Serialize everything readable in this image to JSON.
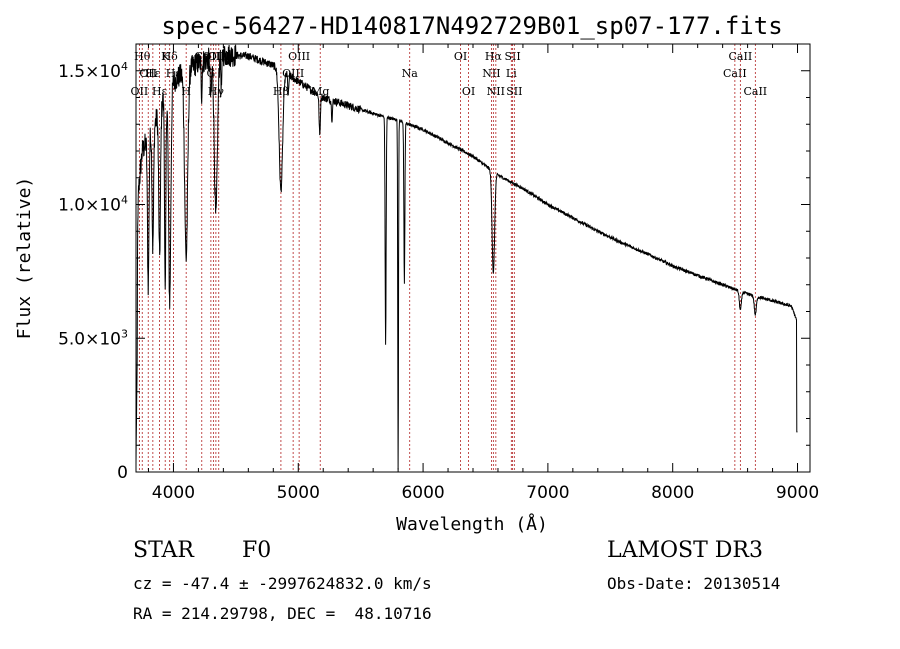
{
  "chart_data": {
    "type": "line",
    "title": "spec-56427-HD140817N492729B01_sp07-177.fits",
    "xlabel": "Wavelength (Å)",
    "ylabel": "Flux (relative)",
    "xlim": [
      3700,
      9100
    ],
    "ylim": [
      0,
      16000
    ],
    "xticks": [
      {
        "value": 4000,
        "label": "4000"
      },
      {
        "value": 5000,
        "label": "5000"
      },
      {
        "value": 6000,
        "label": "6000"
      },
      {
        "value": 7000,
        "label": "7000"
      },
      {
        "value": 8000,
        "label": "8000"
      },
      {
        "value": 9000,
        "label": "9000"
      }
    ],
    "yticks": [
      {
        "value": 0,
        "mant": "0",
        "exp": ""
      },
      {
        "value": 5000,
        "mant": "5.0×10",
        "exp": "3"
      },
      {
        "value": 10000,
        "mant": "1.0×10",
        "exp": "4"
      },
      {
        "value": 15000,
        "mant": "1.5×10",
        "exp": "4"
      }
    ],
    "continuum": [
      [
        3700,
        5000
      ],
      [
        3720,
        10500
      ],
      [
        3750,
        12000
      ],
      [
        3800,
        12500
      ],
      [
        3850,
        13000
      ],
      [
        3900,
        13700
      ],
      [
        3950,
        14200
      ],
      [
        4000,
        14600
      ],
      [
        4100,
        15000
      ],
      [
        4200,
        15300
      ],
      [
        4400,
        15600
      ],
      [
        4600,
        15550
      ],
      [
        4800,
        15200
      ],
      [
        5000,
        14600
      ],
      [
        5200,
        14000
      ],
      [
        5400,
        13700
      ],
      [
        5600,
        13400
      ],
      [
        5800,
        13150
      ],
      [
        6000,
        12800
      ],
      [
        6200,
        12300
      ],
      [
        6400,
        11800
      ],
      [
        6600,
        11100
      ],
      [
        6800,
        10600
      ],
      [
        7000,
        10000
      ],
      [
        7200,
        9500
      ],
      [
        7400,
        9000
      ],
      [
        7600,
        8550
      ],
      [
        7800,
        8150
      ],
      [
        8000,
        7700
      ],
      [
        8200,
        7350
      ],
      [
        8400,
        7000
      ],
      [
        8600,
        6650
      ],
      [
        8800,
        6400
      ],
      [
        8950,
        6200
      ],
      [
        9000,
        5600
      ]
    ],
    "absorption_features": [
      {
        "center": 3798,
        "depth": 5500,
        "width": 6
      },
      {
        "center": 3835,
        "depth": 4500,
        "width": 6
      },
      {
        "center": 3889,
        "depth": 5500,
        "width": 7
      },
      {
        "center": 3934,
        "depth": 7500,
        "width": 5
      },
      {
        "center": 3970,
        "depth": 8000,
        "width": 9
      },
      {
        "center": 4102,
        "depth": 7000,
        "width": 12
      },
      {
        "center": 4226,
        "depth": 1200,
        "width": 4
      },
      {
        "center": 4300,
        "depth": 1500,
        "width": 5
      },
      {
        "center": 4340,
        "depth": 6000,
        "width": 12
      },
      {
        "center": 4384,
        "depth": 1200,
        "width": 4
      },
      {
        "center": 4861,
        "depth": 4500,
        "width": 14
      },
      {
        "center": 4920,
        "depth": 800,
        "width": 4
      },
      {
        "center": 5172,
        "depth": 1500,
        "width": 5
      },
      {
        "center": 5270,
        "depth": 700,
        "width": 4
      },
      {
        "center": 5700,
        "depth": 8500,
        "width": 4
      },
      {
        "center": 5800,
        "depth": 13000,
        "width": 3
      },
      {
        "center": 5850,
        "depth": 6000,
        "width": 4
      },
      {
        "center": 6563,
        "depth": 3800,
        "width": 10
      },
      {
        "center": 8542,
        "depth": 700,
        "width": 8
      },
      {
        "center": 8662,
        "depth": 700,
        "width": 8
      }
    ],
    "line_markers": [
      {
        "wl": 3750,
        "label": "Hθ",
        "row": 0
      },
      {
        "wl": 3727,
        "label": "OII",
        "row": 2
      },
      {
        "wl": 3798,
        "label": "OII",
        "row": 1
      },
      {
        "wl": 3835,
        "label": "Hε",
        "row": 1
      },
      {
        "wl": 3889,
        "label": "Hε",
        "row": 2
      },
      {
        "wl": 3934,
        "label": "K",
        "row": 0
      },
      {
        "wl": 3970,
        "label": "Hδ",
        "row": 0
      },
      {
        "wl": 4000,
        "label": "Hε",
        "row": 1
      },
      {
        "wl": 4102,
        "label": "H",
        "row": 2
      },
      {
        "wl": 4227,
        "label": "Ca",
        "row": 0
      },
      {
        "wl": 4300,
        "label": "G",
        "row": 1
      },
      {
        "wl": 4320,
        "label": "OIII",
        "row": 0
      },
      {
        "wl": 4340,
        "label": "Hγ",
        "row": 2
      },
      {
        "wl": 4363,
        "label": "OIII",
        "row": 0
      },
      {
        "wl": 4861,
        "label": "Hβ",
        "row": 2
      },
      {
        "wl": 4959,
        "label": "OIII",
        "row": 1
      },
      {
        "wl": 5007,
        "label": "OIII",
        "row": 0
      },
      {
        "wl": 5176,
        "label": "Mg",
        "row": 2
      },
      {
        "wl": 5893,
        "label": "Na",
        "row": 1
      },
      {
        "wl": 6300,
        "label": "OI",
        "row": 0
      },
      {
        "wl": 6364,
        "label": "OI",
        "row": 2
      },
      {
        "wl": 6548,
        "label": "NII",
        "row": 1
      },
      {
        "wl": 6563,
        "label": "Hα",
        "row": 0
      },
      {
        "wl": 6583,
        "label": "NII",
        "row": 2
      },
      {
        "wl": 6707,
        "label": "Li",
        "row": 1
      },
      {
        "wl": 6717,
        "label": "SII",
        "row": 0
      },
      {
        "wl": 6731,
        "label": "SII",
        "row": 2
      },
      {
        "wl": 8498,
        "label": "CaII",
        "row": 1
      },
      {
        "wl": 8542,
        "label": "CaII",
        "row": 0
      },
      {
        "wl": 8662,
        "label": "CaII",
        "row": 2
      }
    ]
  },
  "info": {
    "class": "STAR",
    "subclass": "F0",
    "survey": "LAMOST DR3",
    "cz": "cz = -47.4 ± -2997624832.0 km/s",
    "obs_date": "Obs-Date: 20130514",
    "radec": "RA = 214.29798, DEC =  48.10716"
  },
  "colors": {
    "marker": "#b22222",
    "axis": "#000000",
    "spectrum": "#000000"
  }
}
